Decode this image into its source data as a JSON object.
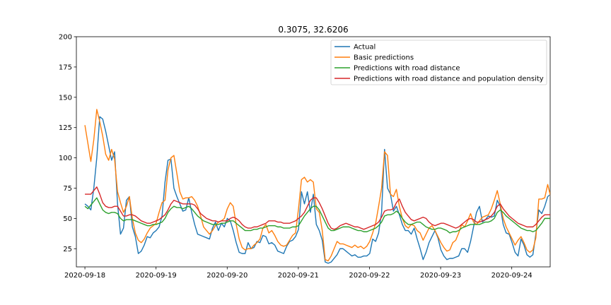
{
  "chart_data": {
    "type": "line",
    "title": "0.3075, 32.6206",
    "xlabel": "",
    "ylabel": "",
    "ylim": [
      10,
      200
    ],
    "xlim": [
      -0.12,
      6.54
    ],
    "yticks": [
      25,
      50,
      75,
      100,
      125,
      150,
      175,
      200
    ],
    "xticks": [
      {
        "pos": 0,
        "label": "2020-09-18"
      },
      {
        "pos": 1,
        "label": "2020-09-19"
      },
      {
        "pos": 2,
        "label": "2020-09-20"
      },
      {
        "pos": 3,
        "label": "2020-09-21"
      },
      {
        "pos": 4,
        "label": "2020-09-22"
      },
      {
        "pos": 5,
        "label": "2020-09-23"
      },
      {
        "pos": 6,
        "label": "2020-09-24"
      }
    ],
    "x_step_days": 0.0417,
    "grid": false,
    "legend_position": "top-right",
    "series": [
      {
        "name": "Actual",
        "color": "#1f77b4",
        "values": [
          62,
          60,
          57,
          75,
          100,
          134,
          132,
          122,
          110,
          98,
          105,
          62,
          37,
          42,
          65,
          68,
          43,
          35,
          21,
          23,
          28,
          35,
          34,
          38,
          40,
          43,
          52,
          80,
          98,
          99,
          75,
          68,
          62,
          56,
          57,
          67,
          55,
          45,
          37,
          36,
          35,
          34,
          33,
          42,
          47,
          40,
          46,
          43,
          50,
          48,
          40,
          30,
          22,
          21,
          21,
          30,
          25,
          26,
          31,
          30,
          36,
          35,
          29,
          30,
          28,
          23,
          22,
          21,
          27,
          31,
          32,
          35,
          41,
          72,
          62,
          72,
          55,
          70,
          45,
          40,
          32,
          14,
          13,
          14,
          17,
          20,
          25,
          25,
          23,
          21,
          19,
          20,
          18,
          18,
          19,
          19,
          21,
          33,
          31,
          38,
          55,
          107,
          75,
          70,
          56,
          60,
          53,
          45,
          40,
          40,
          37,
          42,
          33,
          25,
          16,
          22,
          30,
          35,
          40,
          34,
          24,
          19,
          16,
          17,
          17,
          18,
          19,
          25,
          25,
          22,
          31,
          43,
          55,
          60,
          47,
          49,
          52,
          51,
          52,
          65,
          60,
          45,
          38,
          37,
          30,
          22,
          19,
          33,
          28,
          20,
          18,
          20,
          37,
          57,
          54,
          60,
          68,
          70,
          82,
          68,
          55,
          50,
          48,
          49,
          48,
          62,
          71,
          68,
          57
        ]
      },
      {
        "name": "Basic predictions",
        "color": "#ff7f0e",
        "values": [
          127,
          112,
          97,
          115,
          140,
          130,
          118,
          103,
          98,
          107,
          99,
          72,
          63,
          55,
          60,
          68,
          50,
          38,
          32,
          30,
          33,
          38,
          42,
          44,
          46,
          55,
          63,
          65,
          90,
          100,
          102,
          87,
          72,
          66,
          67,
          67,
          68,
          65,
          60,
          52,
          43,
          40,
          37,
          40,
          44,
          47,
          48,
          50,
          58,
          63,
          60,
          45,
          33,
          26,
          24,
          25,
          25,
          28,
          30,
          33,
          42,
          45,
          38,
          40,
          36,
          31,
          28,
          27,
          28,
          32,
          36,
          38,
          58,
          82,
          84,
          80,
          82,
          80,
          58,
          55,
          40,
          16,
          15,
          19,
          25,
          31,
          29,
          29,
          28,
          27,
          26,
          28,
          26,
          27,
          25,
          27,
          31,
          38,
          46,
          60,
          75,
          105,
          102,
          70,
          68,
          74,
          60,
          50,
          44,
          42,
          45,
          44,
          40,
          38,
          32,
          37,
          42,
          44,
          40,
          35,
          30,
          26,
          23,
          24,
          30,
          32,
          38,
          45,
          43,
          48,
          54,
          47,
          45,
          48,
          51,
          52,
          53,
          58,
          65,
          73,
          62,
          50,
          43,
          38,
          33,
          28,
          32,
          35,
          30,
          24,
          22,
          24,
          34,
          66,
          66,
          67,
          78,
          68,
          75,
          76,
          52,
          45,
          43,
          48,
          50,
          62,
          73,
          68,
          61
        ]
      },
      {
        "name": "Predictions with road distance",
        "color": "#2ca02c",
        "values": [
          60,
          58,
          61,
          64,
          67,
          62,
          57,
          55,
          54,
          55,
          55,
          54,
          50,
          48,
          49,
          49,
          49,
          48,
          47,
          46,
          45,
          44,
          44,
          45,
          45,
          46,
          47,
          50,
          55,
          58,
          60,
          59,
          59,
          58,
          59,
          60,
          58,
          55,
          52,
          50,
          48,
          47,
          46,
          45,
          45,
          45,
          46,
          46,
          47,
          48,
          48,
          46,
          44,
          42,
          40,
          40,
          40,
          41,
          41,
          42,
          42,
          43,
          44,
          44,
          44,
          43,
          43,
          42,
          42,
          42,
          43,
          43,
          44,
          48,
          52,
          55,
          58,
          60,
          60,
          57,
          52,
          47,
          42,
          40,
          40,
          41,
          42,
          43,
          43,
          43,
          42,
          41,
          40,
          40,
          39,
          39,
          40,
          41,
          42,
          44,
          47,
          52,
          53,
          53,
          54,
          56,
          54,
          50,
          47,
          45,
          45,
          46,
          47,
          47,
          45,
          43,
          42,
          41,
          41,
          42,
          42,
          41,
          40,
          38,
          39,
          39,
          40,
          42,
          43,
          44,
          45,
          45,
          45,
          45,
          46,
          47,
          47,
          48,
          50,
          55,
          57,
          55,
          52,
          50,
          48,
          46,
          44,
          42,
          41,
          40,
          40,
          39,
          40,
          43,
          46,
          50,
          50,
          50,
          52,
          55,
          54,
          53,
          51,
          50,
          50,
          50,
          51,
          54,
          55,
          54,
          52
        ]
      },
      {
        "name": "Predictions with road distance and population density",
        "color": "#d62728",
        "values": [
          70,
          70,
          70,
          73,
          76,
          70,
          63,
          60,
          59,
          59,
          60,
          60,
          56,
          52,
          52,
          53,
          53,
          52,
          50,
          48,
          47,
          46,
          46,
          47,
          48,
          49,
          51,
          53,
          57,
          62,
          65,
          64,
          63,
          62,
          62,
          62,
          62,
          61,
          58,
          54,
          52,
          50,
          49,
          48,
          48,
          47,
          48,
          48,
          48,
          50,
          51,
          50,
          48,
          45,
          43,
          42,
          42,
          43,
          43,
          44,
          45,
          46,
          48,
          48,
          48,
          47,
          47,
          46,
          46,
          46,
          47,
          48,
          50,
          52,
          55,
          60,
          65,
          67,
          67,
          63,
          58,
          52,
          46,
          42,
          41,
          42,
          44,
          45,
          46,
          45,
          44,
          43,
          43,
          42,
          41,
          42,
          43,
          44,
          45,
          47,
          51,
          56,
          57,
          57,
          58,
          63,
          66,
          60,
          55,
          52,
          49,
          48,
          49,
          50,
          51,
          50,
          47,
          45,
          44,
          45,
          46,
          46,
          45,
          44,
          43,
          42,
          43,
          45,
          47,
          49,
          50,
          49,
          47,
          47,
          48,
          49,
          50,
          52,
          55,
          60,
          62,
          58,
          55,
          52,
          50,
          48,
          46,
          45,
          44,
          43,
          43,
          43,
          45,
          48,
          51,
          53,
          53,
          53,
          55,
          58,
          59,
          58,
          54,
          52,
          52,
          52,
          53,
          56,
          57,
          57,
          55
        ]
      }
    ]
  }
}
